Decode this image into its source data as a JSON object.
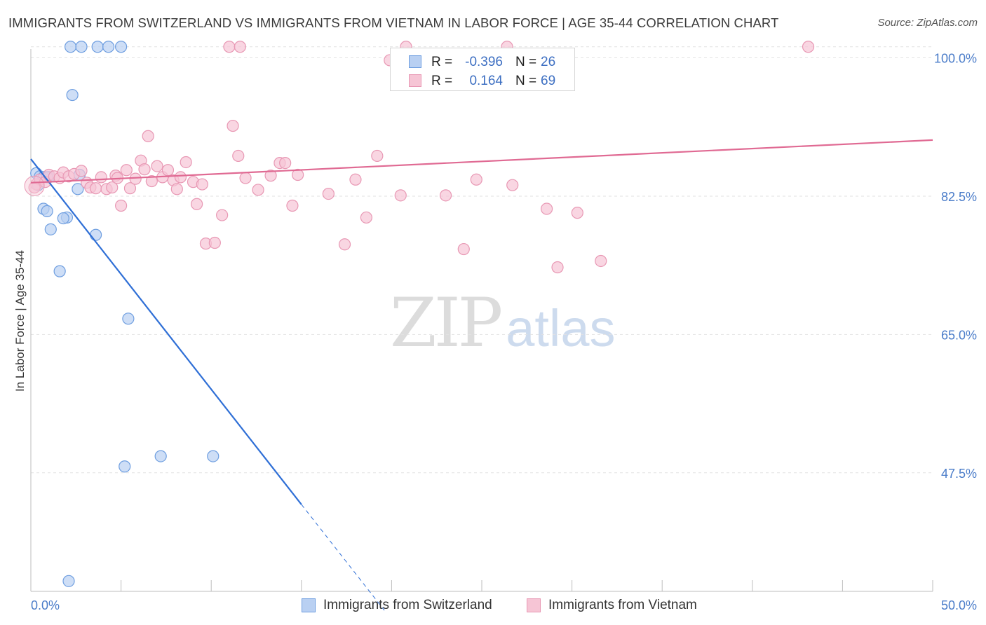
{
  "chart_data": {
    "type": "scatter",
    "title": "IMMIGRANTS FROM SWITZERLAND VS IMMIGRANTS FROM VIETNAM IN LABOR FORCE | AGE 35-44 CORRELATION CHART",
    "source": "Source: ZipAtlas.com",
    "ylabel": "In Labor Force | Age 35-44",
    "xlim": [
      0,
      50
    ],
    "ylim": [
      32.5,
      102
    ],
    "x_tick_labels": [
      {
        "value": 0,
        "label": "0.0%"
      },
      {
        "value": 50,
        "label": "50.0%"
      }
    ],
    "y_tick_labels": [
      {
        "value": 100,
        "label": "100.0%"
      },
      {
        "value": 82.5,
        "label": "82.5%"
      },
      {
        "value": 65,
        "label": "65.0%"
      },
      {
        "value": 47.5,
        "label": "47.5%"
      }
    ],
    "watermark": {
      "zip": "ZIP",
      "atlas": "atlas"
    },
    "legend": {
      "r_label": "R =",
      "n_label": "N =",
      "entries": [
        {
          "name": "Immigrants from Switzerland",
          "r": "-0.396",
          "n": "26"
        },
        {
          "name": "Immigrants from Vietnam",
          "r": "0.164",
          "n": "69"
        }
      ]
    },
    "series": [
      {
        "name": "Immigrants from Switzerland",
        "color": "#6e9ee0",
        "fill": "#b9d0f2",
        "line_color": "#2f6fd6",
        "trend": {
          "x0": 0,
          "y0": 87.2,
          "x1": 15,
          "y1": 43.5,
          "dash_to_x": 19.6
        },
        "points": [
          [
            2.2,
            101.4
          ],
          [
            2.8,
            101.4
          ],
          [
            3.7,
            101.4
          ],
          [
            4.3,
            101.4
          ],
          [
            5.0,
            101.4
          ],
          [
            2.3,
            95.3
          ],
          [
            0.3,
            85.4
          ],
          [
            0.5,
            85.0
          ],
          [
            0.7,
            84.9
          ],
          [
            1.0,
            84.9
          ],
          [
            2.7,
            85.2
          ],
          [
            0.4,
            83.9
          ],
          [
            2.6,
            83.4
          ],
          [
            0.7,
            80.9
          ],
          [
            0.9,
            80.6
          ],
          [
            2.0,
            79.8
          ],
          [
            1.8,
            79.7
          ],
          [
            1.1,
            78.3
          ],
          [
            3.6,
            77.6
          ],
          [
            1.6,
            73.0
          ],
          [
            5.4,
            67.0
          ],
          [
            5.2,
            48.3
          ],
          [
            7.2,
            49.6
          ],
          [
            10.1,
            49.6
          ],
          [
            2.1,
            33.8
          ],
          [
            0.9,
            84.9
          ]
        ]
      },
      {
        "name": "Immigrants from Vietnam",
        "color": "#e898b4",
        "fill": "#f6c5d5",
        "line_color": "#e06a93",
        "trend": {
          "x0": 0,
          "y0": 84.2,
          "x1": 50,
          "y1": 89.6
        },
        "points": [
          [
            0.3,
            84.0
          ],
          [
            0.5,
            84.6
          ],
          [
            0.8,
            84.3
          ],
          [
            1.0,
            85.2
          ],
          [
            1.3,
            85.0
          ],
          [
            1.6,
            84.8
          ],
          [
            1.8,
            85.5
          ],
          [
            2.1,
            85.0
          ],
          [
            2.4,
            85.3
          ],
          [
            2.8,
            85.7
          ],
          [
            3.1,
            84.2
          ],
          [
            3.3,
            83.6
          ],
          [
            3.6,
            83.5
          ],
          [
            3.9,
            84.9
          ],
          [
            4.2,
            83.4
          ],
          [
            4.5,
            83.6
          ],
          [
            4.7,
            85.1
          ],
          [
            5.0,
            81.3
          ],
          [
            5.3,
            85.8
          ],
          [
            5.5,
            83.5
          ],
          [
            5.8,
            84.7
          ],
          [
            6.1,
            87.0
          ],
          [
            6.3,
            85.9
          ],
          [
            6.5,
            90.1
          ],
          [
            6.7,
            84.4
          ],
          [
            7.0,
            86.3
          ],
          [
            7.3,
            84.9
          ],
          [
            7.6,
            85.8
          ],
          [
            7.9,
            84.5
          ],
          [
            8.1,
            83.4
          ],
          [
            8.3,
            84.9
          ],
          [
            8.6,
            86.8
          ],
          [
            9.0,
            84.3
          ],
          [
            9.2,
            81.5
          ],
          [
            9.5,
            84.0
          ],
          [
            9.7,
            76.5
          ],
          [
            10.2,
            76.6
          ],
          [
            10.6,
            80.1
          ],
          [
            11.2,
            91.4
          ],
          [
            11.5,
            87.6
          ],
          [
            11.9,
            84.8
          ],
          [
            12.6,
            83.3
          ],
          [
            13.3,
            85.1
          ],
          [
            13.8,
            86.7
          ],
          [
            14.1,
            86.7
          ],
          [
            14.5,
            81.3
          ],
          [
            14.8,
            85.2
          ],
          [
            16.5,
            82.8
          ],
          [
            17.4,
            76.4
          ],
          [
            18.0,
            84.6
          ],
          [
            18.6,
            79.8
          ],
          [
            19.2,
            87.6
          ],
          [
            20.5,
            82.6
          ],
          [
            23.0,
            82.6
          ],
          [
            24.0,
            75.8
          ],
          [
            24.7,
            84.6
          ],
          [
            26.7,
            83.9
          ],
          [
            28.6,
            80.9
          ],
          [
            29.2,
            73.5
          ],
          [
            30.3,
            80.4
          ],
          [
            31.6,
            74.3
          ],
          [
            11.0,
            101.4
          ],
          [
            11.6,
            101.4
          ],
          [
            19.9,
            99.7
          ],
          [
            20.8,
            101.4
          ],
          [
            26.4,
            101.4
          ],
          [
            43.1,
            101.4
          ],
          [
            0.2,
            83.6
          ],
          [
            4.8,
            84.8
          ]
        ]
      }
    ]
  }
}
